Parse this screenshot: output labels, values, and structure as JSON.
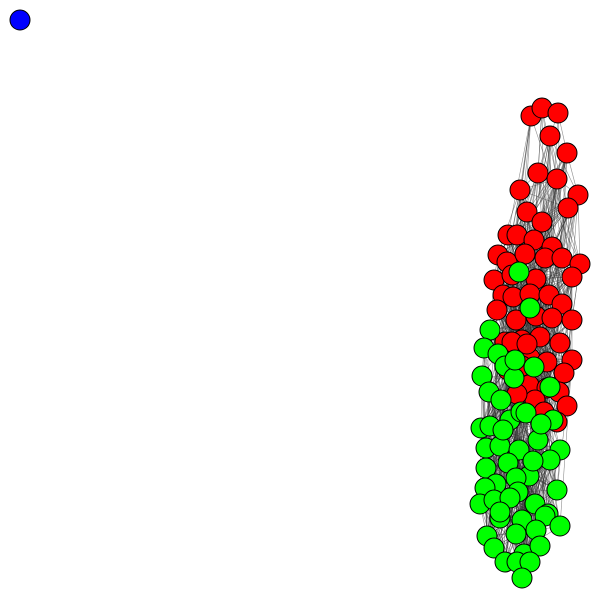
{
  "colors": {
    "red_group": "#ff0000",
    "green_group": "#00ff00",
    "isolated_node": "#0000ff",
    "node_outline": "#000000",
    "edge": "#333333",
    "background": "#ffffff"
  },
  "groups": [
    {
      "id": "red",
      "node_count": 56,
      "color_key": "red_group"
    },
    {
      "id": "green",
      "node_count": 56,
      "color_key": "green_group"
    },
    {
      "id": "isolated",
      "node_count": 1,
      "color_key": "isolated_node"
    }
  ]
}
